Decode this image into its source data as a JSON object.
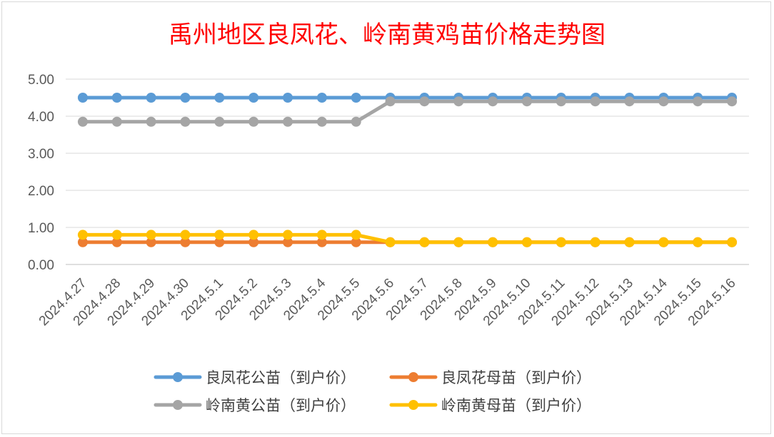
{
  "chart_data": {
    "type": "line",
    "title": "禹州地区良凤花、岭南黄鸡苗价格走势图",
    "categories": [
      "2024.4.27",
      "2024.4.28",
      "2024.4.29",
      "2024.4.30",
      "2024.5.1",
      "2024.5.2",
      "2024.5.3",
      "2024.5.4",
      "2024.5.5",
      "2024.5.6",
      "2024.5.7",
      "2024.5.8",
      "2024.5.9",
      "2024.5.10",
      "2024.5.11",
      "2024.5.12",
      "2024.5.13",
      "2024.5.14",
      "2024.5.15",
      "2024.5.16"
    ],
    "ylim": [
      0,
      5
    ],
    "yticks": [
      "0.00",
      "1.00",
      "2.00",
      "3.00",
      "4.00",
      "5.00"
    ],
    "grid": true,
    "legend_position": "bottom",
    "series": [
      {
        "name": "良凤花公苗（到户价）",
        "color": "#5b9bd5",
        "values": [
          4.5,
          4.5,
          4.5,
          4.5,
          4.5,
          4.5,
          4.5,
          4.5,
          4.5,
          4.5,
          4.5,
          4.5,
          4.5,
          4.5,
          4.5,
          4.5,
          4.5,
          4.5,
          4.5,
          4.5
        ]
      },
      {
        "name": "良凤花母苗（到户价）",
        "color": "#ed7d31",
        "values": [
          0.6,
          0.6,
          0.6,
          0.6,
          0.6,
          0.6,
          0.6,
          0.6,
          0.6,
          0.6,
          0.6,
          0.6,
          0.6,
          0.6,
          0.6,
          0.6,
          0.6,
          0.6,
          0.6,
          0.6
        ]
      },
      {
        "name": "岭南黄公苗（到户价）",
        "color": "#a5a5a5",
        "values": [
          3.85,
          3.85,
          3.85,
          3.85,
          3.85,
          3.85,
          3.85,
          3.85,
          3.85,
          4.4,
          4.4,
          4.4,
          4.4,
          4.4,
          4.4,
          4.4,
          4.4,
          4.4,
          4.4,
          4.4
        ]
      },
      {
        "name": "岭南黄母苗（到户价）",
        "color": "#ffc000",
        "values": [
          0.8,
          0.8,
          0.8,
          0.8,
          0.8,
          0.8,
          0.8,
          0.8,
          0.8,
          0.6,
          0.6,
          0.6,
          0.6,
          0.6,
          0.6,
          0.6,
          0.6,
          0.6,
          0.6,
          0.6
        ]
      }
    ]
  }
}
